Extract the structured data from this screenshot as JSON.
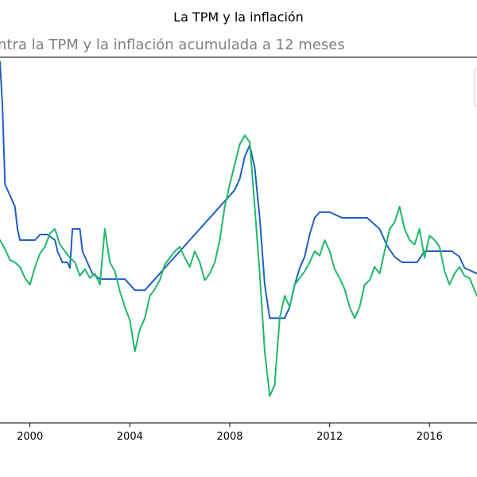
{
  "chart_data": {
    "type": "line",
    "title": "La TPM y la inflación",
    "subtitle": "ntra la TPM y la inflación acumulada a 12 meses",
    "xlim": [
      1998.8,
      2017.9
    ],
    "ylim": [
      -4.2,
      12.2
    ],
    "x_ticks": [
      {
        "value": 2000,
        "label": "2000"
      },
      {
        "value": 2004,
        "label": "2004"
      },
      {
        "value": 2008,
        "label": "2008"
      },
      {
        "value": 2012,
        "label": "2012"
      },
      {
        "value": 2016,
        "label": "2016"
      }
    ],
    "series": [
      {
        "color": "#1f5fc0",
        "x": [
          1998.8,
          1998.9,
          1999.0,
          1999.2,
          1999.4,
          1999.5,
          1999.6,
          1999.8,
          2000.0,
          2000.2,
          2000.4,
          2000.7,
          2001.0,
          2001.1,
          2001.3,
          2001.5,
          2001.6,
          2001.7,
          2002.0,
          2002.1,
          2002.3,
          2002.5,
          2002.8,
          2003.2,
          2003.6,
          2003.8,
          2004.0,
          2004.2,
          2004.4,
          2004.6,
          2004.8,
          2005.0,
          2005.2,
          2005.4,
          2005.6,
          2005.8,
          2006.0,
          2006.2,
          2006.4,
          2006.6,
          2006.8,
          2007.0,
          2007.2,
          2007.4,
          2007.6,
          2007.8,
          2008.0,
          2008.2,
          2008.4,
          2008.6,
          2008.8,
          2009.0,
          2009.2,
          2009.4,
          2009.6,
          2009.8,
          2010.0,
          2010.2,
          2010.4,
          2010.6,
          2010.8,
          2011.0,
          2011.2,
          2011.4,
          2011.6,
          2011.8,
          2012.0,
          2012.5,
          2013.0,
          2013.5,
          2014.0,
          2014.3,
          2014.6,
          2014.9,
          2015.2,
          2015.5,
          2015.8,
          2016.2,
          2016.5,
          2016.9,
          2017.2,
          2017.4,
          2017.9
        ],
        "y": [
          12.0,
          10.0,
          6.5,
          6.0,
          5.5,
          4.5,
          4.0,
          4.0,
          4.0,
          4.0,
          4.25,
          4.25,
          4.0,
          3.5,
          3.0,
          3.0,
          2.75,
          4.5,
          4.5,
          3.5,
          3.0,
          2.5,
          2.25,
          2.25,
          2.25,
          2.25,
          2.0,
          1.75,
          1.75,
          1.75,
          2.0,
          2.25,
          2.5,
          2.75,
          3.0,
          3.25,
          3.5,
          3.75,
          4.0,
          4.25,
          4.5,
          4.75,
          5.0,
          5.25,
          5.5,
          5.75,
          6.0,
          6.25,
          6.75,
          7.75,
          8.25,
          7.25,
          5.0,
          2.0,
          0.5,
          0.5,
          0.5,
          0.5,
          1.0,
          2.0,
          2.75,
          3.25,
          4.25,
          5.0,
          5.25,
          5.25,
          5.25,
          5.0,
          5.0,
          5.0,
          4.5,
          3.75,
          3.25,
          3.0,
          3.0,
          3.0,
          3.5,
          3.5,
          3.5,
          3.5,
          3.25,
          2.75,
          2.5
        ]
      },
      {
        "color": "#21b86a",
        "x": [
          1998.8,
          1999.0,
          1999.2,
          1999.4,
          1999.6,
          1999.8,
          2000.0,
          2000.2,
          2000.4,
          2000.6,
          2000.8,
          2001.0,
          2001.2,
          2001.4,
          2001.6,
          2001.8,
          2002.0,
          2002.2,
          2002.4,
          2002.6,
          2002.8,
          2003.0,
          2003.2,
          2003.4,
          2003.6,
          2003.8,
          2004.0,
          2004.2,
          2004.4,
          2004.6,
          2004.8,
          2005.0,
          2005.2,
          2005.4,
          2005.6,
          2005.8,
          2006.0,
          2006.2,
          2006.4,
          2006.6,
          2006.8,
          2007.0,
          2007.2,
          2007.4,
          2007.6,
          2007.8,
          2008.0,
          2008.2,
          2008.4,
          2008.6,
          2008.8,
          2009.0,
          2009.2,
          2009.4,
          2009.6,
          2009.8,
          2010.0,
          2010.2,
          2010.4,
          2010.6,
          2010.8,
          2011.0,
          2011.2,
          2011.4,
          2011.6,
          2011.8,
          2012.0,
          2012.2,
          2012.4,
          2012.6,
          2012.8,
          2013.0,
          2013.2,
          2013.4,
          2013.6,
          2013.8,
          2014.0,
          2014.2,
          2014.4,
          2014.6,
          2014.8,
          2015.0,
          2015.2,
          2015.4,
          2015.6,
          2015.8,
          2016.0,
          2016.2,
          2016.4,
          2016.6,
          2016.8,
          2017.0,
          2017.2,
          2017.4,
          2017.6,
          2017.9
        ],
        "y": [
          4.0,
          3.6,
          3.1,
          3.0,
          2.8,
          2.3,
          2.0,
          2.8,
          3.4,
          3.7,
          4.3,
          4.5,
          3.8,
          3.5,
          3.2,
          3.0,
          2.4,
          2.7,
          2.3,
          2.5,
          2.0,
          4.5,
          3.0,
          2.6,
          1.7,
          1.0,
          0.4,
          -1.0,
          0.0,
          0.5,
          1.5,
          1.8,
          2.2,
          2.9,
          3.2,
          3.5,
          3.7,
          3.2,
          2.8,
          3.5,
          3.0,
          2.2,
          2.5,
          3.0,
          4.0,
          5.5,
          6.5,
          7.4,
          8.3,
          8.7,
          8.4,
          5.5,
          2.5,
          -1.0,
          -3.0,
          -2.5,
          0.5,
          1.5,
          1.0,
          2.0,
          2.3,
          2.6,
          3.0,
          3.5,
          3.3,
          4.0,
          3.5,
          2.7,
          2.3,
          1.8,
          1.0,
          0.5,
          1.0,
          2.0,
          2.2,
          2.8,
          2.5,
          3.5,
          4.5,
          4.8,
          5.5,
          4.5,
          4.0,
          3.8,
          4.5,
          3.2,
          4.2,
          4.0,
          3.7,
          2.6,
          2.0,
          2.5,
          2.8,
          2.4,
          2.3,
          1.5
        ]
      }
    ]
  }
}
